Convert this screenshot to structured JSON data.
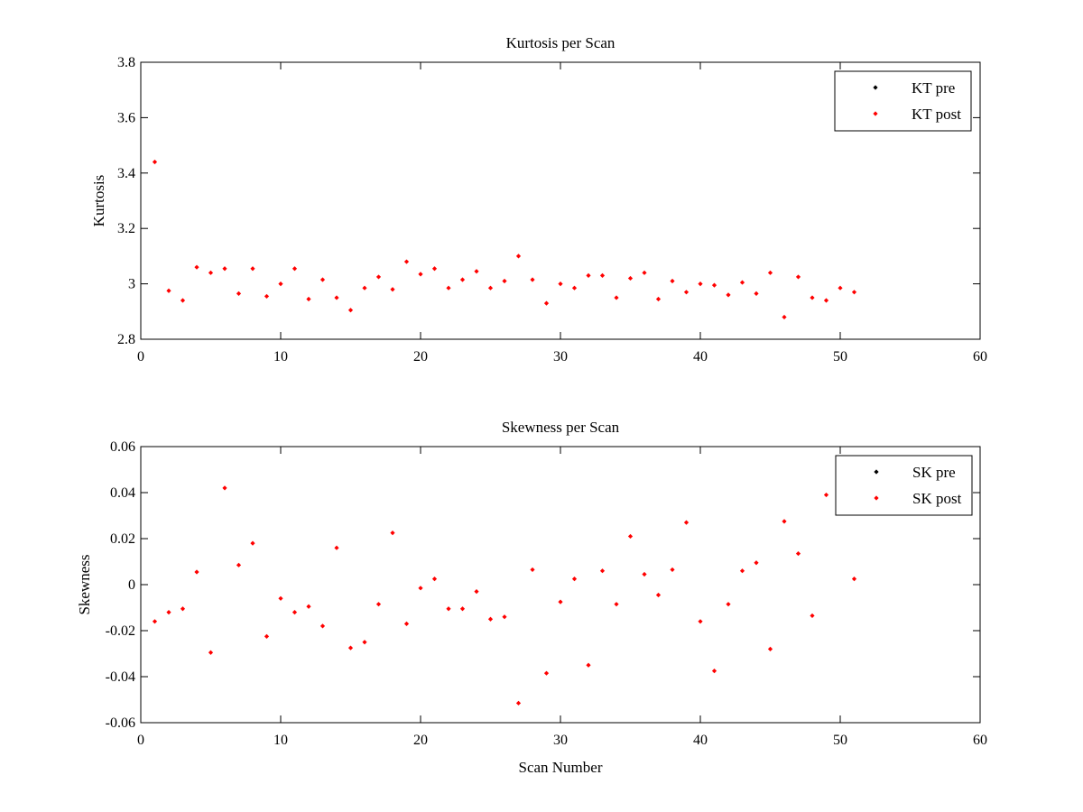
{
  "chart_data": [
    {
      "type": "scatter",
      "title": "Kurtosis per Scan",
      "xlabel": "",
      "ylabel": "Kurtosis",
      "xlim": [
        0,
        60
      ],
      "ylim": [
        2.8,
        3.8
      ],
      "xticks": [
        "0",
        "10",
        "20",
        "30",
        "40",
        "50",
        "60"
      ],
      "yticks": [
        "2.8",
        "3",
        "3.2",
        "3.4",
        "3.6",
        "3.8"
      ],
      "grid": false,
      "legend_position": "top-right",
      "series": [
        {
          "name": "KT pre",
          "color": "#000000",
          "x": [],
          "y": []
        },
        {
          "name": "KT post",
          "color": "#ff0000",
          "x": [
            1,
            2,
            3,
            4,
            5,
            6,
            7,
            8,
            9,
            10,
            11,
            12,
            13,
            14,
            15,
            16,
            17,
            18,
            19,
            20,
            21,
            22,
            23,
            24,
            25,
            26,
            27,
            28,
            29,
            30,
            31,
            32,
            33,
            34,
            35,
            36,
            37,
            38,
            39,
            40,
            41,
            42,
            43,
            44,
            45,
            46,
            47,
            48,
            49,
            50,
            51
          ],
          "y": [
            3.44,
            2.975,
            2.94,
            3.06,
            3.04,
            3.055,
            2.965,
            3.055,
            2.955,
            3.0,
            3.055,
            2.945,
            3.015,
            2.95,
            2.905,
            2.985,
            3.025,
            2.98,
            3.08,
            3.035,
            3.055,
            2.985,
            3.015,
            3.045,
            2.985,
            3.01,
            3.1,
            3.015,
            2.93,
            3.0,
            2.985,
            3.03,
            3.03,
            2.95,
            3.02,
            3.04,
            2.945,
            3.01,
            2.97,
            3.0,
            2.995,
            2.96,
            3.005,
            2.965,
            3.04,
            2.88,
            3.025,
            2.95,
            2.94,
            2.985,
            2.97
          ]
        }
      ]
    },
    {
      "type": "scatter",
      "title": "Skewness per Scan",
      "xlabel": "Scan Number",
      "ylabel": "Skewness",
      "xlim": [
        0,
        60
      ],
      "ylim": [
        -0.06,
        0.06
      ],
      "xticks": [
        "0",
        "10",
        "20",
        "30",
        "40",
        "50",
        "60"
      ],
      "yticks": [
        "-0.06",
        "-0.04",
        "-0.02",
        "0",
        "0.02",
        "0.04",
        "0.06"
      ],
      "grid": false,
      "legend_position": "top-right",
      "series": [
        {
          "name": "SK pre",
          "color": "#000000",
          "x": [],
          "y": []
        },
        {
          "name": "SK post",
          "color": "#ff0000",
          "x": [
            1,
            2,
            3,
            4,
            5,
            6,
            7,
            8,
            9,
            10,
            11,
            12,
            13,
            14,
            15,
            16,
            17,
            18,
            19,
            20,
            21,
            22,
            23,
            24,
            25,
            26,
            27,
            28,
            29,
            30,
            31,
            32,
            33,
            34,
            35,
            36,
            37,
            38,
            39,
            40,
            41,
            42,
            43,
            44,
            45,
            46,
            47,
            48,
            49,
            50,
            51
          ],
          "y": [
            -0.016,
            -0.012,
            -0.0105,
            0.0055,
            -0.0295,
            0.042,
            0.0085,
            0.018,
            -0.0225,
            -0.006,
            -0.012,
            -0.0095,
            -0.018,
            0.016,
            -0.0275,
            -0.025,
            -0.0085,
            0.0225,
            -0.017,
            -0.0015,
            0.0025,
            -0.0105,
            -0.0105,
            -0.003,
            -0.015,
            -0.014,
            -0.0515,
            0.0065,
            -0.0385,
            -0.0075,
            0.0025,
            -0.035,
            0.006,
            -0.0085,
            0.021,
            0.0045,
            -0.0045,
            0.0065,
            0.027,
            -0.016,
            -0.0375,
            -0.0085,
            0.006,
            0.0095,
            -0.028,
            0.0275,
            0.0135,
            -0.0135,
            0.039,
            null,
            0.0025
          ]
        }
      ]
    }
  ]
}
